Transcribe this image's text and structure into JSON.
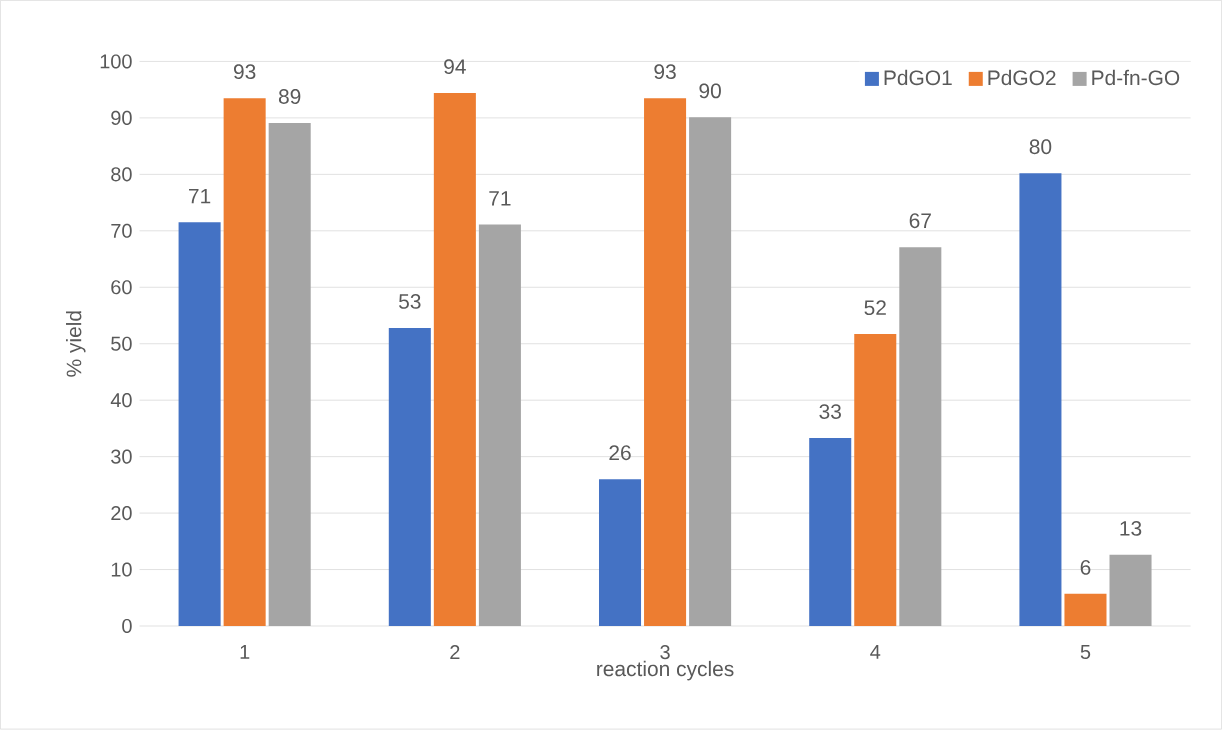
{
  "chart_data": {
    "type": "bar",
    "xlabel": "reaction cycles",
    "ylabel": "% yield",
    "categories": [
      "1",
      "2",
      "3",
      "4",
      "5"
    ],
    "series": [
      {
        "name": "PdGO1",
        "color": "#4472c4",
        "values": [
          71.5,
          52.8,
          26,
          33.3,
          80.2
        ],
        "value_labels": [
          "71",
          "53",
          "26",
          "33",
          "80"
        ]
      },
      {
        "name": "PdGO2",
        "color": "#ed7d31",
        "values": [
          93.5,
          94.4,
          93.5,
          51.7,
          5.7
        ],
        "value_labels": [
          "93",
          "94",
          "93",
          "52",
          "6"
        ]
      },
      {
        "name": "Pd-fn-GO",
        "color": "#a5a5a5",
        "values": [
          89.1,
          71.1,
          90.1,
          67.1,
          12.6
        ],
        "value_labels": [
          "89",
          "71",
          "90",
          "67",
          "13"
        ]
      }
    ],
    "ylim": [
      0,
      100
    ],
    "yticks": [
      0,
      10,
      20,
      30,
      40,
      50,
      60,
      70,
      80,
      90,
      100
    ],
    "grid": "y",
    "legend": "top right"
  }
}
